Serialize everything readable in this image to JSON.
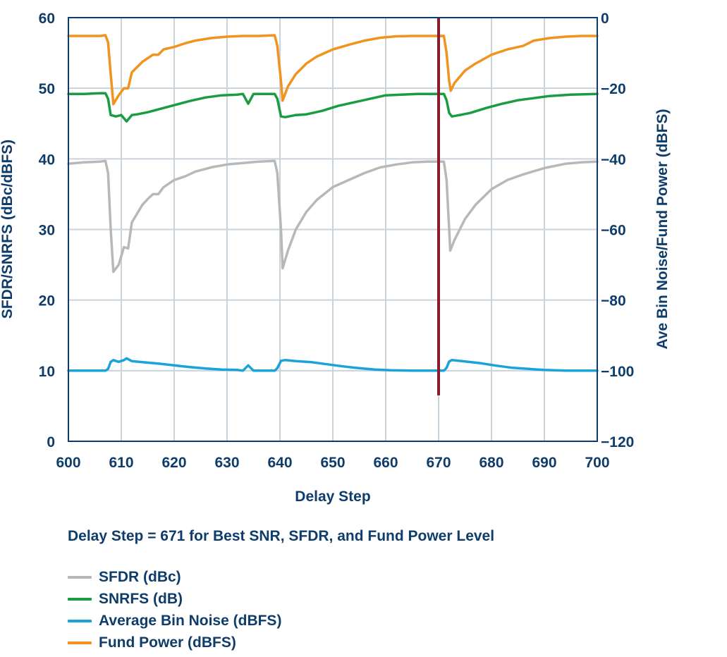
{
  "chart_data": {
    "type": "line",
    "title": "",
    "xlabel": "Delay Step",
    "ylabel_left": "SFDR/SNRFS (dBc/dBFS)",
    "ylabel_right": "Ave Bin Noise/Fund Power (dBFS)",
    "xlim": [
      600,
      700
    ],
    "ylim_left": [
      0,
      60
    ],
    "ylim_right": [
      -120,
      0
    ],
    "xticks": [
      600,
      610,
      620,
      630,
      640,
      650,
      660,
      670,
      680,
      690,
      700
    ],
    "yticks_left": [
      0,
      10,
      20,
      30,
      40,
      50,
      60
    ],
    "yticks_right": [
      "−120",
      "−100",
      "−80",
      "−60",
      "−40",
      "−20",
      "0"
    ],
    "grid": true,
    "legend_position": "bottom",
    "marker_line": {
      "x": 670,
      "y_right_range": [
        -107,
        0
      ],
      "color": "#8b1a2f"
    },
    "annotation": "Delay Step = 671 for Best SNR, SFDR, and Fund Power Level",
    "series": [
      {
        "name": "SFDR (dBc)",
        "axis": "left",
        "color": "#b8b8b8",
        "points": [
          [
            600,
            39.3
          ],
          [
            603,
            39.5
          ],
          [
            606,
            39.6
          ],
          [
            607,
            39.7
          ],
          [
            607.5,
            38
          ],
          [
            608,
            30
          ],
          [
            608.5,
            24
          ],
          [
            609.5,
            25
          ],
          [
            610.5,
            27.5
          ],
          [
            611.3,
            27.3
          ],
          [
            612,
            31
          ],
          [
            614,
            33.5
          ],
          [
            615,
            34.3
          ],
          [
            616,
            35
          ],
          [
            617,
            35
          ],
          [
            618,
            36
          ],
          [
            620,
            37
          ],
          [
            622,
            37.5
          ],
          [
            624,
            38.2
          ],
          [
            627,
            38.8
          ],
          [
            630,
            39.2
          ],
          [
            633,
            39.4
          ],
          [
            636,
            39.6
          ],
          [
            639,
            39.7
          ],
          [
            639.5,
            38
          ],
          [
            640.2,
            30
          ],
          [
            640.5,
            24.5
          ],
          [
            641.5,
            27
          ],
          [
            643,
            30
          ],
          [
            645,
            32.5
          ],
          [
            647,
            34.2
          ],
          [
            650,
            36
          ],
          [
            653,
            37
          ],
          [
            656,
            38
          ],
          [
            659,
            38.8
          ],
          [
            662,
            39.2
          ],
          [
            665,
            39.5
          ],
          [
            668,
            39.6
          ],
          [
            671,
            39.6
          ],
          [
            671.5,
            37
          ],
          [
            672,
            30
          ],
          [
            672.2,
            27
          ],
          [
            673,
            28.5
          ],
          [
            675,
            31.5
          ],
          [
            677,
            33.5
          ],
          [
            680,
            35.7
          ],
          [
            683,
            37
          ],
          [
            686,
            37.8
          ],
          [
            690,
            38.7
          ],
          [
            694,
            39.3
          ],
          [
            697,
            39.5
          ],
          [
            700,
            39.6
          ]
        ]
      },
      {
        "name": "SNRFS (dB)",
        "axis": "left",
        "color": "#1a9c42",
        "points": [
          [
            600,
            49.2
          ],
          [
            603,
            49.2
          ],
          [
            606,
            49.3
          ],
          [
            607,
            49.3
          ],
          [
            607.5,
            48.5
          ],
          [
            608,
            46.2
          ],
          [
            609,
            46
          ],
          [
            610,
            46.2
          ],
          [
            611,
            45.3
          ],
          [
            612,
            46.2
          ],
          [
            613,
            46.3
          ],
          [
            615,
            46.6
          ],
          [
            617,
            47
          ],
          [
            620,
            47.6
          ],
          [
            623,
            48.2
          ],
          [
            626,
            48.7
          ],
          [
            629,
            49
          ],
          [
            632,
            49.1
          ],
          [
            633,
            49.2
          ],
          [
            634,
            47.8
          ],
          [
            635,
            49.2
          ],
          [
            637,
            49.2
          ],
          [
            639,
            49.2
          ],
          [
            639.5,
            48.5
          ],
          [
            640.2,
            46
          ],
          [
            641,
            45.9
          ],
          [
            643,
            46.2
          ],
          [
            645,
            46.3
          ],
          [
            648,
            46.8
          ],
          [
            651,
            47.5
          ],
          [
            654,
            48
          ],
          [
            657,
            48.5
          ],
          [
            660,
            49
          ],
          [
            663,
            49.1
          ],
          [
            666,
            49.2
          ],
          [
            671,
            49.2
          ],
          [
            671.5,
            48.3
          ],
          [
            672,
            46.5
          ],
          [
            672.5,
            46
          ],
          [
            674,
            46.2
          ],
          [
            676,
            46.5
          ],
          [
            679,
            47.2
          ],
          [
            682,
            47.8
          ],
          [
            685,
            48.3
          ],
          [
            688,
            48.6
          ],
          [
            691,
            48.9
          ],
          [
            695,
            49.1
          ],
          [
            700,
            49.2
          ]
        ]
      },
      {
        "name": "Average Bin Noise (dBFS)",
        "axis": "right",
        "color": "#1aa3d9",
        "points": [
          [
            600,
            -100
          ],
          [
            603,
            -100
          ],
          [
            606,
            -100
          ],
          [
            607,
            -100
          ],
          [
            607.5,
            -99.5
          ],
          [
            608,
            -97.5
          ],
          [
            608.5,
            -97
          ],
          [
            609.5,
            -97.5
          ],
          [
            610.5,
            -97
          ],
          [
            611,
            -96.5
          ],
          [
            612,
            -97.3
          ],
          [
            614,
            -97.6
          ],
          [
            617,
            -98
          ],
          [
            620,
            -98.5
          ],
          [
            623,
            -99
          ],
          [
            626,
            -99.4
          ],
          [
            629,
            -99.7
          ],
          [
            632,
            -99.8
          ],
          [
            633,
            -100
          ],
          [
            634,
            -98.5
          ],
          [
            635,
            -100
          ],
          [
            637,
            -100
          ],
          [
            639,
            -100
          ],
          [
            639.5,
            -99.3
          ],
          [
            640.2,
            -97.2
          ],
          [
            641,
            -97
          ],
          [
            643,
            -97.3
          ],
          [
            646,
            -97.6
          ],
          [
            649,
            -98.2
          ],
          [
            652,
            -98.8
          ],
          [
            655,
            -99.3
          ],
          [
            658,
            -99.7
          ],
          [
            661,
            -99.9
          ],
          [
            665,
            -100
          ],
          [
            671,
            -100
          ],
          [
            671.5,
            -99.2
          ],
          [
            672,
            -97.4
          ],
          [
            672.5,
            -97
          ],
          [
            675,
            -97.4
          ],
          [
            678,
            -97.9
          ],
          [
            681,
            -98.6
          ],
          [
            684,
            -99.2
          ],
          [
            687,
            -99.5
          ],
          [
            690,
            -99.8
          ],
          [
            694,
            -100
          ],
          [
            700,
            -100
          ]
        ]
      },
      {
        "name": "Fund Power (dBFS)",
        "axis": "right",
        "color": "#f0941f",
        "points": [
          [
            600,
            -5.2
          ],
          [
            603,
            -5.2
          ],
          [
            606,
            -5.2
          ],
          [
            607,
            -5
          ],
          [
            607.5,
            -7
          ],
          [
            608,
            -16
          ],
          [
            608.5,
            -24.5
          ],
          [
            609.5,
            -22
          ],
          [
            610.5,
            -20
          ],
          [
            611.3,
            -20
          ],
          [
            612,
            -15.5
          ],
          [
            614,
            -12.5
          ],
          [
            615,
            -11.5
          ],
          [
            616,
            -10.5
          ],
          [
            617,
            -10.5
          ],
          [
            618,
            -9
          ],
          [
            620,
            -8.3
          ],
          [
            622,
            -7.3
          ],
          [
            624,
            -6.5
          ],
          [
            627,
            -5.8
          ],
          [
            630,
            -5.4
          ],
          [
            633,
            -5.2
          ],
          [
            636,
            -5.2
          ],
          [
            639,
            -5
          ],
          [
            639.5,
            -8
          ],
          [
            640.2,
            -18
          ],
          [
            640.5,
            -23.5
          ],
          [
            641.5,
            -19.5
          ],
          [
            643,
            -16
          ],
          [
            645,
            -13
          ],
          [
            647,
            -11
          ],
          [
            650,
            -9
          ],
          [
            653,
            -7.7
          ],
          [
            656,
            -6.5
          ],
          [
            659,
            -5.7
          ],
          [
            662,
            -5.3
          ],
          [
            665,
            -5.2
          ],
          [
            668,
            -5.2
          ],
          [
            671,
            -5.2
          ],
          [
            671.5,
            -10
          ],
          [
            672,
            -18
          ],
          [
            672.3,
            -20.7
          ],
          [
            673,
            -18.5
          ],
          [
            675,
            -15
          ],
          [
            677,
            -13
          ],
          [
            680,
            -10.5
          ],
          [
            683,
            -9
          ],
          [
            686,
            -8
          ],
          [
            688,
            -6.5
          ],
          [
            691,
            -5.8
          ],
          [
            694,
            -5.4
          ],
          [
            697,
            -5.2
          ],
          [
            700,
            -5.2
          ]
        ]
      }
    ]
  }
}
